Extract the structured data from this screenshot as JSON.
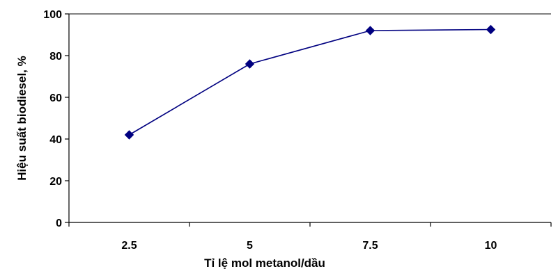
{
  "chart_data": {
    "type": "line",
    "title": "",
    "xlabel": "Tỉ lệ mol metanol/dầu",
    "ylabel": "Hiệu suất biodiesel, %",
    "categories": [
      "2.5",
      "5",
      "7.5",
      "10"
    ],
    "series": [
      {
        "values": [
          42,
          76,
          92,
          92.5
        ],
        "color": "#000080",
        "marker": "diamond"
      }
    ],
    "ylim": [
      0,
      100
    ],
    "yticks": [
      "0",
      "20",
      "40",
      "60",
      "80",
      "100"
    ],
    "grid": false,
    "legend": "none"
  }
}
